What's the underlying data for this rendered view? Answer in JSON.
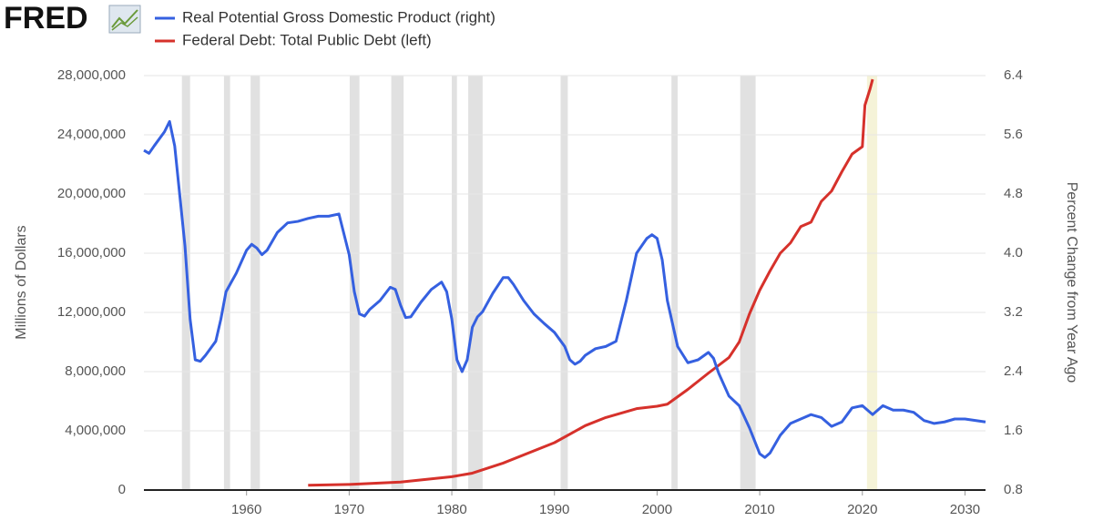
{
  "chart_data": {
    "type": "line",
    "logo": "FRED",
    "y_label": "Millions of Dollars",
    "y2_label": "Percent Change from Year Ago",
    "xlim": [
      1950,
      2032
    ],
    "xticks": [
      1960,
      1970,
      1980,
      1990,
      2000,
      2010,
      2020,
      2030
    ],
    "ylim": [
      0,
      28000000
    ],
    "yticks": [
      0,
      {
        "value": 4000000,
        "label": "4,000,000"
      },
      {
        "value": 8000000,
        "label": "8,000,000"
      },
      {
        "value": 12000000,
        "label": "12,000,000"
      },
      {
        "value": 16000000,
        "label": "16,000,000"
      },
      {
        "value": 20000000,
        "label": "20,000,000"
      },
      {
        "value": 24000000,
        "label": "24,000,000"
      },
      {
        "value": 28000000,
        "label": "28,000,000"
      }
    ],
    "y2lim": [
      0.8,
      6.4
    ],
    "y2ticks": [
      0.8,
      1.6,
      2.4,
      3.2,
      {
        "value": 4.0,
        "label": "4.0"
      },
      4.8,
      5.6,
      6.4
    ],
    "grid": true,
    "recessions": [
      [
        1953.7,
        1954.5
      ],
      [
        1957.8,
        1958.4
      ],
      [
        1960.4,
        1961.3
      ],
      [
        1970.05,
        1971.0
      ],
      [
        1974.1,
        1975.3
      ],
      [
        1980.0,
        1980.5
      ],
      [
        1981.6,
        1983.0
      ],
      [
        1990.6,
        1991.3
      ],
      [
        2001.4,
        2002.0
      ],
      [
        2008.1,
        2009.6
      ]
    ],
    "recession_color": "#e1e1e1",
    "highlight": [
      2020.45,
      2021.45
    ],
    "highlight_color": "#f5f3d8",
    "series": [
      {
        "name": "Real Potential Gross Domestic Product (right)",
        "color": "#3560e0",
        "axis": "y2",
        "x": [
          1950,
          1950.5,
          1951,
          1952,
          1952.5,
          1953,
          1954,
          1954.5,
          1955,
          1955.5,
          1956,
          1957,
          1957.5,
          1958,
          1959,
          1960,
          1960.5,
          1961,
          1961.5,
          1962,
          1963,
          1964,
          1965,
          1966,
          1967,
          1968,
          1969,
          1970,
          1970.5,
          1971,
          1971.5,
          1972,
          1973,
          1974,
          1974.5,
          1975,
          1975.5,
          1976,
          1977,
          1978,
          1979,
          1979.5,
          1980,
          1980.5,
          1981,
          1981.5,
          1982,
          1982.5,
          1983,
          1984,
          1985,
          1985.5,
          1986,
          1987,
          1988,
          1989,
          1990,
          1991,
          1991.5,
          1992,
          1992.5,
          1993,
          1994,
          1995,
          1996,
          1997,
          1998,
          1999,
          1999.5,
          2000,
          2000.5,
          2001,
          2002,
          2003,
          2004,
          2005,
          2005.5,
          2006,
          2007,
          2008,
          2009,
          2010,
          2010.5,
          2011,
          2012,
          2013,
          2014,
          2015,
          2016,
          2017,
          2018,
          2019,
          2020,
          2021,
          2022,
          2023,
          2024,
          2025,
          2026,
          2027,
          2028,
          2029,
          2030,
          2031,
          2032
        ],
        "values": [
          5.39,
          5.35,
          5.45,
          5.64,
          5.78,
          5.45,
          4.1,
          3.11,
          2.56,
          2.54,
          2.62,
          2.81,
          3.11,
          3.48,
          3.73,
          4.04,
          4.12,
          4.07,
          3.98,
          4.04,
          4.28,
          4.41,
          4.43,
          4.47,
          4.5,
          4.5,
          4.53,
          3.98,
          3.48,
          3.18,
          3.15,
          3.24,
          3.36,
          3.54,
          3.51,
          3.3,
          3.13,
          3.14,
          3.34,
          3.51,
          3.61,
          3.48,
          3.11,
          2.56,
          2.4,
          2.56,
          3.0,
          3.14,
          3.21,
          3.46,
          3.67,
          3.67,
          3.58,
          3.36,
          3.18,
          3.05,
          2.93,
          2.74,
          2.56,
          2.5,
          2.54,
          2.62,
          2.71,
          2.74,
          2.81,
          3.36,
          4.0,
          4.2,
          4.25,
          4.2,
          3.91,
          3.36,
          2.74,
          2.52,
          2.56,
          2.66,
          2.58,
          2.38,
          2.07,
          1.94,
          1.64,
          1.29,
          1.24,
          1.3,
          1.54,
          1.7,
          1.76,
          1.82,
          1.78,
          1.66,
          1.72,
          1.91,
          1.94,
          1.82,
          1.94,
          1.88,
          1.88,
          1.85,
          1.74,
          1.7,
          1.72,
          1.76,
          1.76,
          1.74,
          1.72
        ]
      },
      {
        "name": "Federal Debt: Total Public Debt (left)",
        "color": "#d6312b",
        "axis": "y",
        "x": [
          1966,
          1970,
          1975,
          1980,
          1982,
          1985,
          1990,
          1993,
          1995,
          1998,
          2000,
          2001,
          2003,
          2005,
          2007,
          2008,
          2009,
          2010,
          2011,
          2012,
          2013,
          2014,
          2015,
          2016,
          2017,
          2018,
          2019,
          2020,
          2020.25,
          2020.75,
          2021
        ],
        "values": [
          320000,
          380000,
          540000,
          900000,
          1140000,
          1820000,
          3200000,
          4350000,
          4900000,
          5500000,
          5660000,
          5800000,
          6800000,
          7900000,
          8950000,
          10000000,
          11900000,
          13500000,
          14800000,
          16000000,
          16700000,
          17800000,
          18100000,
          19500000,
          20200000,
          21500000,
          22700000,
          23200000,
          26000000,
          27100000,
          27750000
        ]
      }
    ]
  }
}
